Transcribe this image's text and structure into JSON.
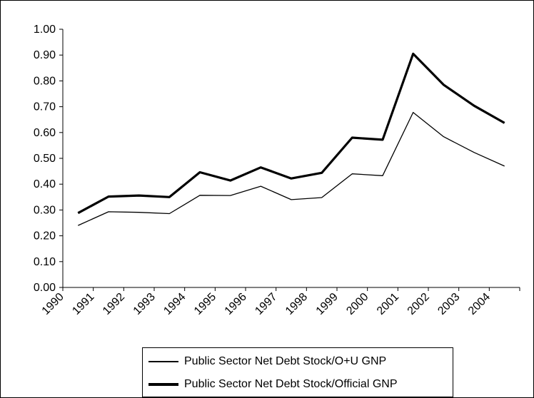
{
  "chart_data": {
    "type": "line",
    "categories": [
      "1990",
      "1991",
      "1992",
      "1993",
      "1994",
      "1995",
      "1996",
      "1997",
      "1998",
      "1999",
      "2000",
      "2001",
      "2002",
      "2003",
      "2004"
    ],
    "ylim": [
      0,
      1.0
    ],
    "yticks": [
      "0.00",
      "0.10",
      "0.20",
      "0.30",
      "0.40",
      "0.50",
      "0.60",
      "0.70",
      "0.80",
      "0.90",
      "1.00"
    ],
    "grid": false,
    "legend_position": "bottom",
    "series": [
      {
        "name": "Public Sector Net Debt Stock/O+U GNP",
        "values": [
          0.24,
          0.293,
          0.291,
          0.286,
          0.357,
          0.356,
          0.392,
          0.34,
          0.348,
          0.44,
          0.433,
          0.678,
          0.584,
          0.523,
          0.47
        ],
        "color": "#000000",
        "weight": "thin"
      },
      {
        "name": "Public Sector Net Debt Stock/Official GNP",
        "values": [
          0.288,
          0.352,
          0.356,
          0.35,
          0.446,
          0.414,
          0.465,
          0.422,
          0.444,
          0.58,
          0.572,
          0.905,
          0.785,
          0.704,
          0.637
        ],
        "color": "#000000",
        "weight": "thick"
      }
    ]
  }
}
